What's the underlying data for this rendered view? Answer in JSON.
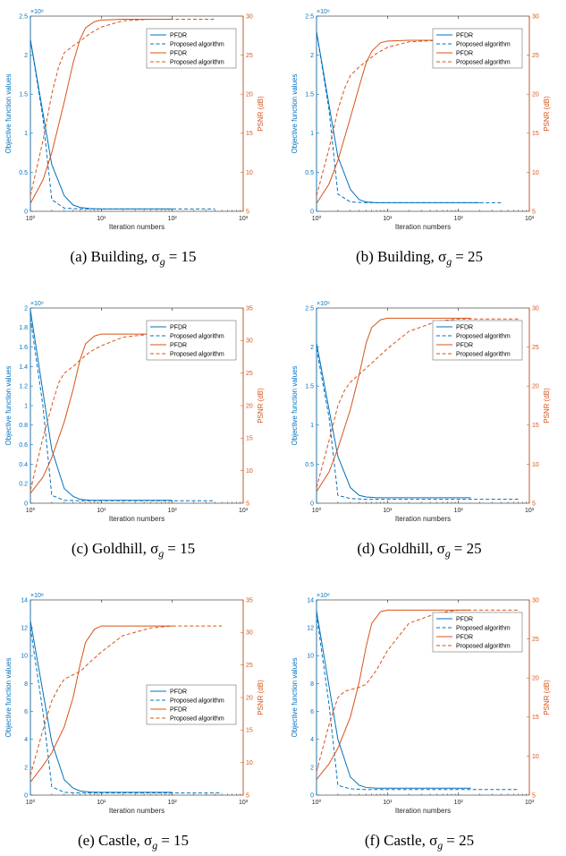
{
  "colors": {
    "blue": "#0072BD",
    "orange": "#D95319"
  },
  "chart_data": [
    {
      "type": "line",
      "caption": "(a)  Building, σ",
      "caption_value": "= 15",
      "xlabel": "Iteration numbers",
      "ylabel": "Objective function values",
      "y2label": "PSNR (dB)",
      "x_scale": "log",
      "xlim": [
        1,
        1000
      ],
      "x_ticks": [
        "10⁰",
        "10¹",
        "10²",
        "10³"
      ],
      "ylim": [
        0,
        2.5
      ],
      "y_ticks": [
        "0",
        "0.5",
        "1",
        "1.5",
        "2",
        "2.5"
      ],
      "y_multiplier": "×10⁹",
      "y2lim": [
        5,
        30
      ],
      "y2_ticks": [
        "5",
        "10",
        "15",
        "20",
        "25",
        "30"
      ],
      "legend": [
        "PFDR",
        "Proposed algorithm",
        "PFDR",
        "Proposed algorithm"
      ],
      "legend_position": "top-right",
      "series": [
        {
          "name": "PFDR",
          "axis": "left",
          "style": "solid",
          "color": "#0072BD",
          "x": [
            1,
            2,
            3,
            4,
            5,
            7,
            10,
            20,
            50,
            100
          ],
          "y": [
            2.2,
            0.6,
            0.2,
            0.08,
            0.05,
            0.035,
            0.03,
            0.03,
            0.03,
            0.03
          ]
        },
        {
          "name": "Proposed algorithm",
          "axis": "left",
          "style": "dashed",
          "color": "#0072BD",
          "x": [
            1,
            1.5,
            2,
            3,
            5,
            10,
            50,
            100,
            200,
            400
          ],
          "y": [
            2.2,
            1.2,
            0.15,
            0.04,
            0.03,
            0.03,
            0.03,
            0.03,
            0.03,
            0.03
          ]
        },
        {
          "name": "PFDR",
          "axis": "right",
          "style": "solid",
          "color": "#D95319",
          "x": [
            1,
            1.5,
            2,
            3,
            4,
            5,
            6,
            8,
            10,
            20,
            50,
            100
          ],
          "y": [
            6,
            9,
            12.5,
            19,
            24,
            27,
            28.5,
            29.3,
            29.5,
            29.6,
            29.6,
            29.6
          ]
        },
        {
          "name": "Proposed algorithm",
          "axis": "right",
          "style": "dashed",
          "color": "#D95319",
          "x": [
            1,
            1.5,
            2,
            2.5,
            3,
            4,
            5,
            7,
            10,
            20,
            50,
            100,
            200,
            400
          ],
          "y": [
            7,
            14,
            20,
            23.5,
            25.3,
            26.2,
            26.8,
            27.8,
            28.6,
            29.4,
            29.6,
            29.6,
            29.6,
            29.6
          ]
        }
      ]
    },
    {
      "type": "line",
      "caption": "(b)  Building, σ",
      "caption_value": "= 25",
      "xlabel": "Iteration numbers",
      "ylabel": "Objective function values",
      "y2label": "PSNR (dB)",
      "x_scale": "log",
      "xlim": [
        1,
        1000
      ],
      "x_ticks": [
        "10⁰",
        "10¹",
        "10²",
        "10³"
      ],
      "ylim": [
        0,
        2.5
      ],
      "y_ticks": [
        "0",
        "0.5",
        "1",
        "1.5",
        "2",
        "2.5"
      ],
      "y_multiplier": "×10⁹",
      "y2lim": [
        5,
        30
      ],
      "y2_ticks": [
        "5",
        "10",
        "15",
        "20",
        "25",
        "30"
      ],
      "legend": [
        "PFDR",
        "Proposed algorithm",
        "PFDR",
        "Proposed algorithm"
      ],
      "legend_position": "top-right",
      "series": [
        {
          "name": "PFDR",
          "axis": "left",
          "style": "solid",
          "color": "#0072BD",
          "x": [
            1,
            2,
            3,
            4,
            5,
            7,
            10,
            20,
            50,
            100,
            200
          ],
          "y": [
            2.3,
            0.7,
            0.28,
            0.15,
            0.12,
            0.11,
            0.11,
            0.11,
            0.11,
            0.11,
            0.11
          ]
        },
        {
          "name": "Proposed algorithm",
          "axis": "left",
          "style": "dashed",
          "color": "#0072BD",
          "x": [
            1,
            1.5,
            2,
            3,
            5,
            10,
            50,
            100,
            200,
            400
          ],
          "y": [
            2.3,
            1.3,
            0.22,
            0.12,
            0.11,
            0.11,
            0.11,
            0.11,
            0.11,
            0.11
          ]
        },
        {
          "name": "PFDR",
          "axis": "right",
          "style": "solid",
          "color": "#D95319",
          "x": [
            1,
            1.5,
            2,
            3,
            4,
            5,
            6,
            8,
            10,
            20,
            50,
            100,
            200
          ],
          "y": [
            6,
            8.5,
            11.5,
            17,
            21,
            24,
            25.5,
            26.6,
            26.8,
            26.9,
            26.9,
            26.9,
            26.9
          ]
        },
        {
          "name": "Proposed algorithm",
          "axis": "right",
          "style": "dashed",
          "color": "#D95319",
          "x": [
            1,
            1.5,
            2,
            2.5,
            3,
            4,
            5,
            7,
            10,
            20,
            50,
            100,
            200,
            400
          ],
          "y": [
            7,
            13,
            18,
            20.8,
            22.4,
            23.5,
            24.2,
            25.2,
            26,
            26.7,
            26.9,
            26.9,
            26.9,
            26.9
          ]
        }
      ]
    },
    {
      "type": "line",
      "caption": "(c)  Goldhill, σ",
      "caption_value": "= 15",
      "xlabel": "Iteration numbers",
      "ylabel": "Objective function values",
      "y2label": "PSNR (dB)",
      "x_scale": "log",
      "xlim": [
        1,
        1000
      ],
      "x_ticks": [
        "10⁰",
        "10¹",
        "10²",
        "10³"
      ],
      "ylim": [
        0,
        2
      ],
      "y_ticks": [
        "0",
        "0.2",
        "0.4",
        "0.6",
        "0.8",
        "1",
        "1.2",
        "1.4",
        "1.6",
        "1.8",
        "2"
      ],
      "y_multiplier": "×10⁹",
      "y2lim": [
        5,
        35
      ],
      "y2_ticks": [
        "5",
        "10",
        "15",
        "20",
        "25",
        "30",
        "35"
      ],
      "legend": [
        "PFDR",
        "Proposed algorithm",
        "PFDR",
        "Proposed algorithm"
      ],
      "legend_position": "top-right",
      "series": [
        {
          "name": "PFDR",
          "axis": "left",
          "style": "solid",
          "color": "#0072BD",
          "x": [
            1,
            2,
            3,
            4,
            5,
            7,
            10,
            20,
            50,
            100
          ],
          "y": [
            1.98,
            0.55,
            0.15,
            0.07,
            0.04,
            0.03,
            0.03,
            0.03,
            0.03,
            0.03
          ]
        },
        {
          "name": "Proposed algorithm",
          "axis": "left",
          "style": "dashed",
          "color": "#0072BD",
          "x": [
            1,
            1.5,
            2,
            3,
            5,
            10,
            50,
            100,
            200,
            400
          ],
          "y": [
            1.9,
            1.0,
            0.08,
            0.03,
            0.025,
            0.025,
            0.025,
            0.025,
            0.025,
            0.025
          ]
        },
        {
          "name": "PFDR",
          "axis": "right",
          "style": "solid",
          "color": "#D95319",
          "x": [
            1,
            1.5,
            2,
            3,
            4,
            5,
            6,
            8,
            10,
            20,
            50,
            100
          ],
          "y": [
            6.5,
            9,
            12,
            17.5,
            22.5,
            27,
            29.5,
            30.7,
            31,
            31,
            31,
            31
          ]
        },
        {
          "name": "Proposed algorithm",
          "axis": "right",
          "style": "dashed",
          "color": "#D95319",
          "x": [
            1,
            1.5,
            2,
            2.5,
            3,
            4,
            5,
            7,
            10,
            20,
            50,
            100,
            200,
            400
          ],
          "y": [
            7,
            15,
            20,
            23.5,
            25,
            26,
            27,
            28.3,
            29.2,
            30.5,
            31,
            31,
            31,
            31
          ]
        }
      ]
    },
    {
      "type": "line",
      "caption": "(d)  Goldhill, σ",
      "caption_value": "= 25",
      "xlabel": "Iteration numbers",
      "ylabel": "Objective function values",
      "y2label": "PSNR (dB)",
      "x_scale": "log",
      "xlim": [
        1,
        1000
      ],
      "x_ticks": [
        "10⁰",
        "10¹",
        "10²",
        "10³"
      ],
      "ylim": [
        0,
        2.5
      ],
      "y_ticks": [
        "0",
        "0.5",
        "1",
        "1.5",
        "2",
        "2.5"
      ],
      "y_multiplier": "×10⁹",
      "y2lim": [
        5,
        30
      ],
      "y2_ticks": [
        "5",
        "10",
        "15",
        "20",
        "25",
        "30"
      ],
      "legend": [
        "PFDR",
        "Proposed algorithm",
        "PFDR",
        "Proposed algorithm"
      ],
      "legend_position": "top-right",
      "series": [
        {
          "name": "PFDR",
          "axis": "left",
          "style": "solid",
          "color": "#0072BD",
          "x": [
            1,
            2,
            3,
            4,
            5,
            7,
            10,
            20,
            50,
            100,
            150
          ],
          "y": [
            2.05,
            0.6,
            0.2,
            0.1,
            0.08,
            0.07,
            0.07,
            0.07,
            0.07,
            0.07,
            0.07
          ]
        },
        {
          "name": "Proposed algorithm",
          "axis": "left",
          "style": "dashed",
          "color": "#0072BD",
          "x": [
            1,
            1.5,
            2,
            3,
            5,
            10,
            50,
            100,
            200,
            700
          ],
          "y": [
            1.98,
            1.1,
            0.1,
            0.06,
            0.05,
            0.05,
            0.05,
            0.05,
            0.05,
            0.05
          ]
        },
        {
          "name": "PFDR",
          "axis": "right",
          "style": "solid",
          "color": "#D95319",
          "x": [
            1,
            1.5,
            2,
            3,
            4,
            5,
            6,
            8,
            10,
            20,
            50,
            100,
            150
          ],
          "y": [
            6.5,
            9,
            12,
            17,
            21.5,
            25.5,
            27.5,
            28.5,
            28.7,
            28.7,
            28.7,
            28.7,
            28.7
          ]
        },
        {
          "name": "Proposed algorithm",
          "axis": "right",
          "style": "dashed",
          "color": "#D95319",
          "x": [
            1,
            1.5,
            2,
            2.5,
            3,
            4,
            5,
            7,
            10,
            20,
            50,
            100,
            200,
            700
          ],
          "y": [
            7,
            13,
            17.5,
            19.5,
            20.5,
            21.5,
            22.3,
            23.5,
            24.8,
            27,
            28.3,
            28.6,
            28.6,
            28.6
          ]
        }
      ]
    },
    {
      "type": "line",
      "caption": "(e)  Castle, σ",
      "caption_value": "= 15",
      "xlabel": "Iteration numbers",
      "ylabel": "Objective function values",
      "y2label": "PSNR (dB)",
      "x_scale": "log",
      "xlim": [
        1,
        1000
      ],
      "x_ticks": [
        "10⁰",
        "10¹",
        "10²",
        "10³"
      ],
      "ylim": [
        0,
        14
      ],
      "y_ticks": [
        "0",
        "2",
        "4",
        "6",
        "8",
        "10",
        "12",
        "14"
      ],
      "y_multiplier": "×10⁸",
      "y2lim": [
        5,
        35
      ],
      "y2_ticks": [
        "5",
        "10",
        "15",
        "20",
        "25",
        "30",
        "35"
      ],
      "legend": [
        "PFDR",
        "Proposed algorithm",
        "PFDR",
        "Proposed algorithm"
      ],
      "legend_position": "right",
      "series": [
        {
          "name": "PFDR",
          "axis": "left",
          "style": "solid",
          "color": "#0072BD",
          "x": [
            1,
            2,
            3,
            4,
            5,
            7,
            10,
            20,
            50,
            100
          ],
          "y": [
            12.5,
            3.8,
            1.1,
            0.5,
            0.3,
            0.22,
            0.2,
            0.2,
            0.2,
            0.2
          ]
        },
        {
          "name": "Proposed algorithm",
          "axis": "left",
          "style": "dashed",
          "color": "#0072BD",
          "x": [
            1,
            1.5,
            2,
            3,
            5,
            10,
            50,
            100,
            200,
            500
          ],
          "y": [
            12,
            6,
            0.6,
            0.2,
            0.15,
            0.15,
            0.15,
            0.15,
            0.15,
            0.15
          ]
        },
        {
          "name": "PFDR",
          "axis": "right",
          "style": "solid",
          "color": "#D95319",
          "x": [
            1,
            1.5,
            2,
            3,
            4,
            5,
            6,
            8,
            10,
            20,
            50,
            100
          ],
          "y": [
            7,
            9.5,
            11.5,
            15.5,
            20,
            25,
            28.5,
            30.5,
            31,
            31,
            31,
            31
          ]
        },
        {
          "name": "Proposed algorithm",
          "axis": "right",
          "style": "dashed",
          "color": "#D95319",
          "x": [
            1,
            1.5,
            2,
            2.5,
            3,
            4,
            5,
            7,
            10,
            20,
            50,
            100,
            200,
            500
          ],
          "y": [
            8,
            15,
            19.5,
            21.5,
            22.8,
            23.5,
            24,
            25.5,
            27,
            29.5,
            30.7,
            31,
            31,
            31
          ]
        }
      ]
    },
    {
      "type": "line",
      "caption": "(f)  Castle, σ",
      "caption_value": "= 25",
      "xlabel": "Iteration numbers",
      "ylabel": "Objective function values",
      "y2label": "PSNR (dB)",
      "x_scale": "log",
      "xlim": [
        1,
        1000
      ],
      "x_ticks": [
        "10⁰",
        "10¹",
        "10²",
        "10³"
      ],
      "ylim": [
        0,
        14
      ],
      "y_ticks": [
        "0",
        "2",
        "4",
        "6",
        "8",
        "10",
        "12",
        "14"
      ],
      "y_multiplier": "×10⁸",
      "y2lim": [
        5,
        30
      ],
      "y2_ticks": [
        "5",
        "10",
        "15",
        "20",
        "25",
        "30"
      ],
      "legend": [
        "PFDR",
        "Proposed algorithm",
        "PFDR",
        "Proposed algorithm"
      ],
      "legend_position": "top-right",
      "series": [
        {
          "name": "PFDR",
          "axis": "left",
          "style": "solid",
          "color": "#0072BD",
          "x": [
            1,
            2,
            3,
            4,
            5,
            7,
            10,
            20,
            50,
            100,
            150
          ],
          "y": [
            13.2,
            4,
            1.3,
            0.7,
            0.55,
            0.5,
            0.5,
            0.5,
            0.5,
            0.5,
            0.5
          ]
        },
        {
          "name": "Proposed algorithm",
          "axis": "left",
          "style": "dashed",
          "color": "#0072BD",
          "x": [
            1,
            1.5,
            2,
            3,
            5,
            10,
            50,
            100,
            200,
            700
          ],
          "y": [
            13,
            6.5,
            0.7,
            0.45,
            0.4,
            0.4,
            0.4,
            0.4,
            0.4,
            0.4
          ]
        },
        {
          "name": "PFDR",
          "axis": "right",
          "style": "solid",
          "color": "#D95319",
          "x": [
            1,
            1.5,
            2,
            3,
            4,
            5,
            6,
            8,
            10,
            20,
            50,
            100,
            150
          ],
          "y": [
            7,
            9,
            11,
            15,
            19.5,
            24,
            27,
            28.5,
            28.7,
            28.7,
            28.7,
            28.7,
            28.7
          ]
        },
        {
          "name": "Proposed algorithm",
          "axis": "right",
          "style": "dashed",
          "color": "#D95319",
          "x": [
            1,
            1.5,
            2,
            2.5,
            3,
            4,
            5,
            7,
            10,
            20,
            50,
            100,
            200,
            700
          ],
          "y": [
            8,
            14,
            17.5,
            18.3,
            18.5,
            18.8,
            19.2,
            21,
            23.5,
            27,
            28.3,
            28.7,
            28.7,
            28.7
          ]
        }
      ]
    }
  ]
}
